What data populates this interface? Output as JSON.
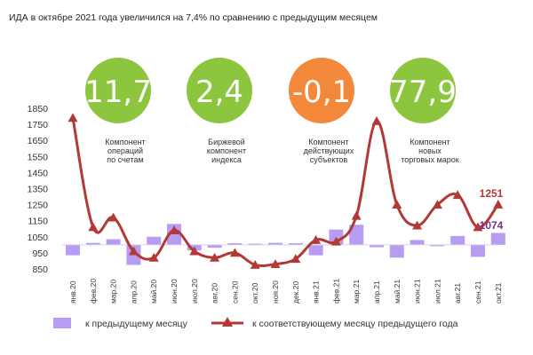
{
  "title": "ИДА в октябре 2021 года увеличился на 7,4% по сравнению с предыдущим месяцем",
  "colors": {
    "bar": "#b79cf2",
    "line": "#b13a36",
    "kpi_green": "#8cc63e",
    "kpi_orange": "#f3873a",
    "end_line_label": "#b13a36",
    "end_bar_label": "#7a2f90"
  },
  "kpis": [
    {
      "value": "11,7",
      "color": "green",
      "caption": [
        "Компонент",
        "операций",
        "по счетам"
      ]
    },
    {
      "value": "2,4",
      "color": "green",
      "caption": [
        "Биржевой",
        "компонент",
        "индекса"
      ]
    },
    {
      "value": "-0,1",
      "color": "orange",
      "caption": [
        "Компонент",
        "действующих",
        "субъектов"
      ]
    },
    {
      "value": "77,9",
      "color": "green",
      "caption": [
        "Компонент",
        "новых",
        "торговых марок"
      ]
    }
  ],
  "chart_data": {
    "type": "bar+line",
    "categories": [
      "янв.20",
      "фев.20",
      "мар.20",
      "апр.20",
      "май.20",
      "июн.20",
      "июл.20",
      "авг.20",
      "сен.20",
      "окт.20",
      "ноя.20",
      "дек.20",
      "янв.21",
      "фев.21",
      "мар.21",
      "апр.21",
      "май.21",
      "июн.21",
      "июл.21",
      "авг.21",
      "сен.21",
      "окт.21"
    ],
    "y_ticks": [
      850,
      950,
      1050,
      1150,
      1250,
      1350,
      1450,
      1550,
      1650,
      1750,
      1850
    ],
    "ylim": [
      850,
      1850
    ],
    "baseline": 1000,
    "series": [
      {
        "name": "к предыдущему месяцу",
        "type": "bar",
        "values": [
          935,
          1012,
          1035,
          875,
          1050,
          1130,
          965,
          982,
          1010,
          1007,
          1012,
          1010,
          935,
          1095,
          1125,
          985,
          920,
          1030,
          995,
          1055,
          925,
          1074
        ]
      },
      {
        "name": "к соответствующему месяцу предыдущего года",
        "type": "line",
        "values": [
          1790,
          1110,
          1170,
          960,
          920,
          1090,
          960,
          920,
          950,
          875,
          880,
          912,
          1030,
          1020,
          1180,
          1770,
          1250,
          1120,
          1250,
          1310,
          1110,
          1251
        ]
      }
    ],
    "end_labels": {
      "line": "1251",
      "bar": "1074"
    },
    "legend_position": "bottom"
  }
}
